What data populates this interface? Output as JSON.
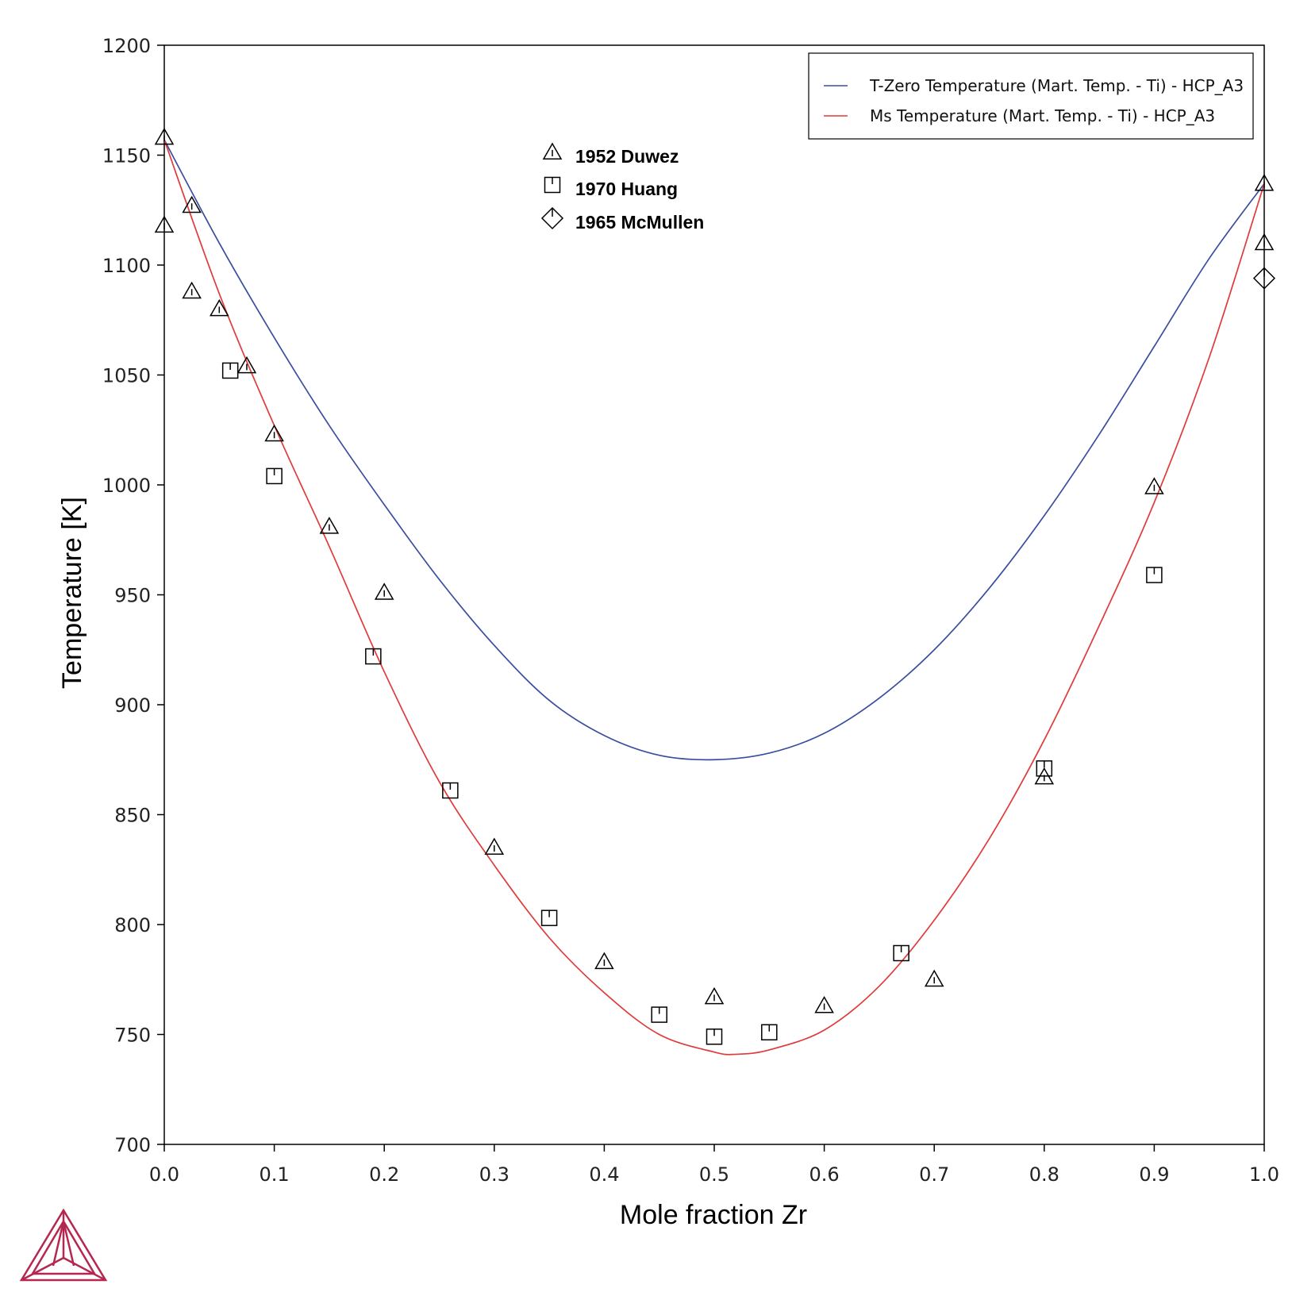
{
  "chart_data": {
    "type": "line",
    "xlabel": "Mole fraction Zr",
    "ylabel": "Temperature [K]",
    "xlim": [
      0,
      1
    ],
    "ylim": [
      700,
      1200
    ],
    "x_ticks": [
      "0.0",
      "0.1",
      "0.2",
      "0.3",
      "0.4",
      "0.5",
      "0.6",
      "0.7",
      "0.8",
      "0.9",
      "1.0"
    ],
    "y_ticks": [
      "700",
      "750",
      "800",
      "850",
      "900",
      "950",
      "1000",
      "1050",
      "1100",
      "1150",
      "1200"
    ],
    "grid": false,
    "legend_position": "top-right",
    "series": [
      {
        "name": "T-Zero Temperature (Mart. Temp. - Ti) - HCP_A3",
        "color": "#3a4ea0",
        "x": [
          0.0,
          0.05,
          0.1,
          0.15,
          0.2,
          0.25,
          0.3,
          0.35,
          0.4,
          0.45,
          0.5,
          0.55,
          0.6,
          0.65,
          0.7,
          0.75,
          0.8,
          0.85,
          0.9,
          0.95,
          1.0
        ],
        "y": [
          1157,
          1110,
          1067,
          1027,
          991,
          957,
          927,
          902,
          886,
          877,
          875,
          878,
          887,
          903,
          925,
          953,
          986,
          1023,
          1063,
          1103,
          1137
        ]
      },
      {
        "name": "Ms Temperature (Mart. Temp. - Ti) - HCP_A3",
        "color": "#e03a3a",
        "x": [
          0.0,
          0.05,
          0.1,
          0.15,
          0.2,
          0.25,
          0.3,
          0.35,
          0.4,
          0.45,
          0.5,
          0.52,
          0.55,
          0.6,
          0.65,
          0.7,
          0.75,
          0.8,
          0.85,
          0.9,
          0.95,
          1.0
        ],
        "y": [
          1157,
          1087,
          1027,
          972,
          915,
          865,
          827,
          794,
          769,
          750,
          742,
          741,
          743,
          752,
          772,
          802,
          839,
          884,
          936,
          992,
          1058,
          1137
        ]
      }
    ],
    "scatter_series": [
      {
        "name": "1952 Duwez",
        "marker": "triangle",
        "points": [
          [
            0.0,
            1158
          ],
          [
            0.0,
            1118
          ],
          [
            0.025,
            1127
          ],
          [
            0.025,
            1088
          ],
          [
            0.05,
            1080
          ],
          [
            0.075,
            1054
          ],
          [
            0.1,
            1023
          ],
          [
            0.15,
            981
          ],
          [
            0.2,
            951
          ],
          [
            0.3,
            835
          ],
          [
            0.4,
            783
          ],
          [
            0.5,
            767
          ],
          [
            0.6,
            763
          ],
          [
            0.7,
            775
          ],
          [
            0.8,
            867
          ],
          [
            0.9,
            999
          ],
          [
            1.0,
            1137
          ],
          [
            1.0,
            1110
          ]
        ]
      },
      {
        "name": "1970 Huang",
        "marker": "square",
        "points": [
          [
            0.06,
            1052
          ],
          [
            0.1,
            1004
          ],
          [
            0.19,
            922
          ],
          [
            0.26,
            861
          ],
          [
            0.35,
            803
          ],
          [
            0.45,
            759
          ],
          [
            0.5,
            749
          ],
          [
            0.55,
            751
          ],
          [
            0.67,
            787
          ],
          [
            0.8,
            871
          ],
          [
            0.9,
            959
          ]
        ]
      },
      {
        "name": "1965 McMullen",
        "marker": "diamond",
        "points": [
          [
            1.0,
            1094
          ]
        ]
      }
    ]
  }
}
